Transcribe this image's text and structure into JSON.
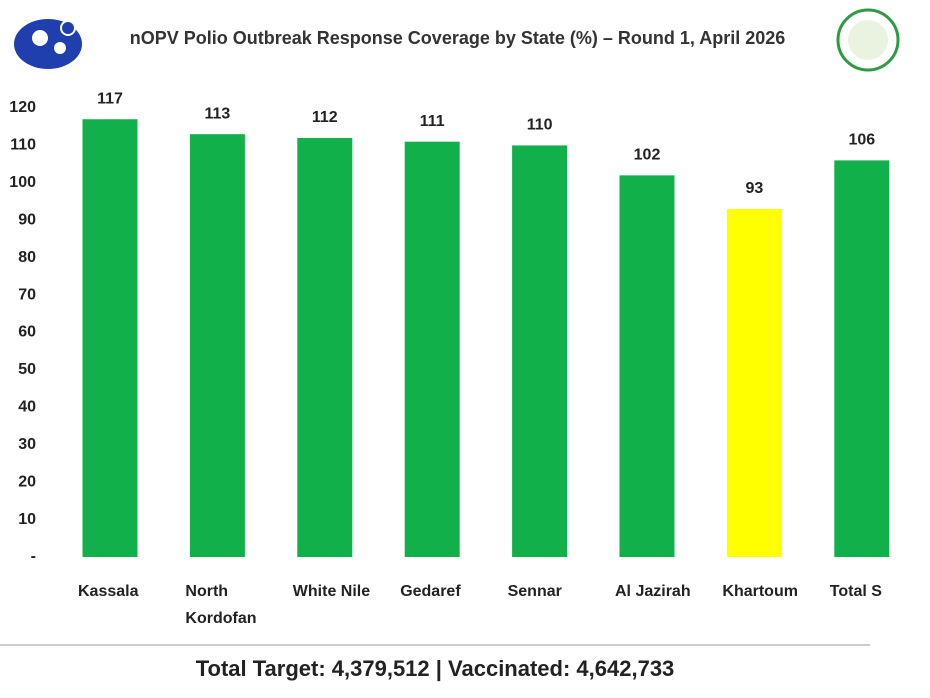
{
  "chart_data": {
    "type": "bar",
    "title": "nOPV Polio Outbreak Response Coverage by State (%) – Round 1, April 2026",
    "categories": [
      "Kassala",
      "North Kordofan",
      "White Nile",
      "Gedaref",
      "Sennar",
      "Al Jazirah",
      "Khartoum",
      "Total S"
    ],
    "values": [
      117,
      113,
      112,
      111,
      110,
      102,
      93,
      106
    ],
    "colors": [
      "#12b04a",
      "#12b04a",
      "#12b04a",
      "#12b04a",
      "#12b04a",
      "#12b04a",
      "#ffff00",
      "#12b04a"
    ],
    "ylim": [
      0,
      120
    ],
    "yticks": [
      {
        "value": 0,
        "label": "-"
      },
      10,
      20,
      30,
      40,
      50,
      60,
      70,
      80,
      90,
      100,
      110,
      120
    ],
    "footer": "Total Target: 4,379,512 | Vaccinated: 4,642,733"
  }
}
